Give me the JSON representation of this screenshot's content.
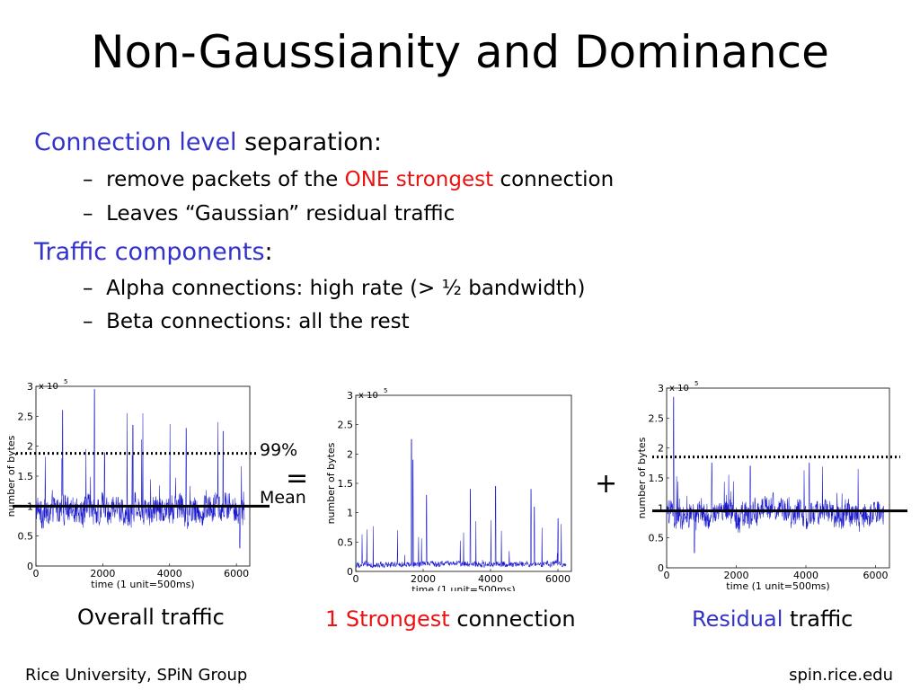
{
  "slide": {
    "title": "Non-Gaussianity and Dominance",
    "bullets": [
      {
        "highlight": "Connection level",
        "rest": " separation:",
        "subs": [
          {
            "pre": "remove packets of the ",
            "red": "ONE strongest",
            "post": " connection"
          },
          {
            "pre": "Leaves “Gaussian” residual traffic",
            "red": "",
            "post": ""
          }
        ]
      },
      {
        "highlight": "Traffic components",
        "rest": ":",
        "subs": [
          {
            "pre": "Alpha connections: high rate (> ½ bandwidth)",
            "red": "",
            "post": ""
          },
          {
            "pre": "Beta connections: all the rest",
            "red": "",
            "post": ""
          }
        ]
      }
    ],
    "dash": "–",
    "annotations": {
      "pct": "99%",
      "mean": "Mean",
      "equals": "=",
      "plus": "+"
    },
    "captions": {
      "overall": "Overall traffic",
      "strongest_red": "1 Strongest",
      "strongest_rest": " connection",
      "residual_blue": "Residual",
      "residual_rest": " traffic"
    },
    "footer": {
      "left": "Rice University, SPiN Group",
      "right": "spin.rice.edu"
    }
  },
  "colors": {
    "series": "#1a1acc",
    "highlight_blue": "#3333cc",
    "highlight_red": "#ee1111"
  },
  "chart_data": [
    {
      "type": "line",
      "name": "overall",
      "xlabel": "time (1 unit=500ms)",
      "ylabel": "number of bytes",
      "exponent": "x 10",
      "exponent_power": "5",
      "xlim": [
        0,
        6400
      ],
      "ylim": [
        0,
        3
      ],
      "xticks": [
        0,
        2000,
        4000,
        6000
      ],
      "yticks": [
        0,
        0.5,
        1,
        1.5,
        2,
        2.5,
        3
      ],
      "xtick_labels": [
        "0",
        "2000",
        "4000",
        "6000"
      ],
      "ytick_labels": [
        "0",
        "0.5",
        "1",
        "1.5",
        "2",
        "2.5",
        "3"
      ],
      "baseline": 0.95,
      "noise": 0.25,
      "spike_rate": 0.045,
      "spike_max": 1.5,
      "mean": 1.0,
      "percentile99": 1.88,
      "peaks": [
        [
          1750,
          2.95
        ],
        [
          800,
          2.6
        ],
        [
          3200,
          2.55
        ],
        [
          2900,
          2.35
        ],
        [
          4500,
          2.3
        ],
        [
          5600,
          2.25
        ],
        [
          6100,
          0.3
        ]
      ]
    },
    {
      "type": "line",
      "name": "strongest",
      "xlabel": "time (1 unit=500ms)",
      "ylabel": "number of bytes",
      "exponent": "x 10",
      "exponent_power": "5",
      "xlim": [
        0,
        6400
      ],
      "ylim": [
        0,
        3
      ],
      "xticks": [
        0,
        2000,
        4000,
        6000
      ],
      "yticks": [
        0,
        0.5,
        1,
        1.5,
        2,
        2.5,
        3
      ],
      "xtick_labels": [
        "0",
        "2000",
        "4000",
        "6000"
      ],
      "ytick_labels": [
        "0",
        "0.5",
        "1",
        "1.5",
        "2",
        "2.5",
        "3"
      ],
      "baseline": 0.13,
      "noise": 0.05,
      "spike_rate": 0.02,
      "spike_max": 0.8,
      "peaks": [
        [
          1650,
          2.25
        ],
        [
          1700,
          1.9
        ],
        [
          3400,
          1.4
        ],
        [
          4150,
          1.45
        ],
        [
          5200,
          1.4
        ],
        [
          5300,
          1.1
        ],
        [
          2100,
          1.3
        ],
        [
          6000,
          0.9
        ]
      ]
    },
    {
      "type": "line",
      "name": "residual",
      "xlabel": "time (1 unit=500ms)",
      "ylabel": "number of bytes",
      "exponent": "x 10",
      "exponent_power": "5",
      "xlim": [
        0,
        6400
      ],
      "ylim": [
        0,
        3
      ],
      "xticks": [
        0,
        2000,
        4000,
        6000
      ],
      "yticks": [
        0,
        0.5,
        1,
        1.5,
        2,
        2.5,
        3
      ],
      "xtick_labels": [
        "0",
        "2000",
        "4000",
        "6000"
      ],
      "ytick_labels": [
        "0",
        "0.5",
        "1",
        "1.5",
        "2",
        "2.5",
        "3"
      ],
      "baseline": 0.9,
      "noise": 0.22,
      "spike_rate": 0.03,
      "spike_max": 0.8,
      "mean": 0.95,
      "percentile99": 1.85,
      "peaks": [
        [
          200,
          2.85
        ],
        [
          1300,
          1.75
        ],
        [
          2400,
          1.7
        ],
        [
          4100,
          1.75
        ],
        [
          5500,
          1.65
        ],
        [
          800,
          0.25
        ]
      ]
    }
  ]
}
